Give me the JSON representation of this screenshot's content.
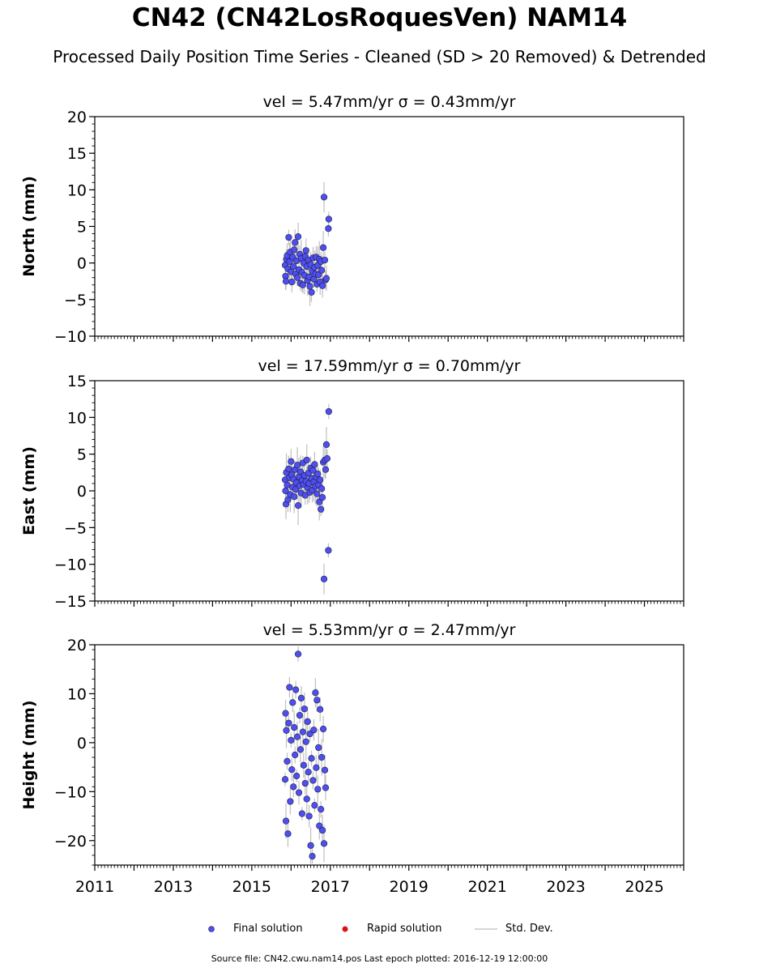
{
  "figure": {
    "title": "CN42 (CN42LosRoquesVen) NAM14",
    "subtitle": "Processed Daily Position Time Series - Cleaned (SD > 20 Removed) & Detrended",
    "source_note": "Source file: CN42.cwu.nam14.pos  Last epoch plotted: 2016-12-19 12:00:00"
  },
  "legend": {
    "final": "Final solution",
    "rapid": "Rapid solution",
    "std": "Std. Dev."
  },
  "colors": {
    "final_fill": "#4f4ff0",
    "final_edge": "#1a1a40",
    "rapid": "#e01010",
    "std": "#b4b4b4"
  },
  "chart_data": [
    {
      "type": "scatter",
      "title": "vel = 5.47mm/yr   σ = 0.43mm/yr",
      "ylabel": "North (mm)",
      "xlim": [
        2011,
        2026
      ],
      "ylim": [
        -10,
        20
      ],
      "yticks": [
        -10,
        -5,
        0,
        5,
        10,
        15,
        20
      ],
      "ytick_labels": [
        "−10",
        "−5",
        "0",
        "5",
        "10",
        "15",
        "20"
      ],
      "xticks": [
        2011,
        2013,
        2015,
        2017,
        2019,
        2021,
        2023,
        2025
      ],
      "xtick_labels": [
        "",
        "",
        "",
        "",
        "",
        "",
        "",
        ""
      ],
      "series": [
        {
          "name": "Final solution",
          "points": [
            [
              2015.85,
              -0.3
            ],
            [
              2015.86,
              -1.8
            ],
            [
              2015.87,
              -2.5
            ],
            [
              2015.88,
              0.5
            ],
            [
              2015.9,
              1.0
            ],
            [
              2015.92,
              -0.8
            ],
            [
              2015.94,
              3.5
            ],
            [
              2015.96,
              0.2
            ],
            [
              2015.98,
              1.5
            ],
            [
              2016.0,
              -1.2
            ],
            [
              2016.02,
              -2.6
            ],
            [
              2016.04,
              0.8
            ],
            [
              2016.06,
              -0.5
            ],
            [
              2016.08,
              1.8
            ],
            [
              2016.1,
              2.8
            ],
            [
              2016.12,
              -1.5
            ],
            [
              2016.14,
              0.3
            ],
            [
              2016.16,
              -2.0
            ],
            [
              2016.18,
              3.6
            ],
            [
              2016.2,
              -0.9
            ],
            [
              2016.22,
              1.2
            ],
            [
              2016.24,
              -2.8
            ],
            [
              2016.26,
              0.6
            ],
            [
              2016.28,
              -1.3
            ],
            [
              2016.3,
              -3.0
            ],
            [
              2016.32,
              0.0
            ],
            [
              2016.34,
              -1.7
            ],
            [
              2016.36,
              0.9
            ],
            [
              2016.38,
              1.7
            ],
            [
              2016.4,
              -0.5
            ],
            [
              2016.42,
              -2.4
            ],
            [
              2016.44,
              0.4
            ],
            [
              2016.46,
              -1.9
            ],
            [
              2016.48,
              -3.2
            ],
            [
              2016.5,
              -0.2
            ],
            [
              2016.52,
              -4.0
            ],
            [
              2016.54,
              -1.1
            ],
            [
              2016.56,
              0.7
            ],
            [
              2016.58,
              -2.2
            ],
            [
              2016.6,
              -0.6
            ],
            [
              2016.62,
              -1.5
            ],
            [
              2016.64,
              0.8
            ],
            [
              2016.66,
              -2.9
            ],
            [
              2016.68,
              -0.3
            ],
            [
              2016.7,
              -1.6
            ],
            [
              2016.72,
              0.5
            ],
            [
              2016.74,
              -2.6
            ],
            [
              2016.76,
              0.2
            ],
            [
              2016.78,
              -1.0
            ],
            [
              2016.8,
              -3.1
            ],
            [
              2016.82,
              2.1
            ],
            [
              2016.84,
              9.0
            ],
            [
              2016.86,
              0.4
            ],
            [
              2016.88,
              -2.3
            ],
            [
              2016.9,
              -2.1
            ],
            [
              2016.95,
              4.7
            ],
            [
              2016.96,
              6.0
            ]
          ]
        }
      ]
    },
    {
      "type": "scatter",
      "title": "vel = 17.59mm/yr   σ = 0.70mm/yr",
      "ylabel": "East (mm)",
      "xlim": [
        2011,
        2026
      ],
      "ylim": [
        -15,
        15
      ],
      "yticks": [
        -15,
        -10,
        -5,
        0,
        5,
        10,
        15
      ],
      "ytick_labels": [
        "−15",
        "−10",
        "−5",
        "0",
        "5",
        "10",
        "15"
      ],
      "xticks": [
        2011,
        2013,
        2015,
        2017,
        2019,
        2021,
        2023,
        2025
      ],
      "xtick_labels": [
        "",
        "",
        "",
        "",
        "",
        "",
        "",
        ""
      ],
      "series": [
        {
          "name": "Final solution",
          "points": [
            [
              2015.85,
              1.5
            ],
            [
              2015.86,
              0.0
            ],
            [
              2015.87,
              -1.8
            ],
            [
              2015.88,
              2.5
            ],
            [
              2015.9,
              0.8
            ],
            [
              2015.92,
              -1.2
            ],
            [
              2015.94,
              3.0
            ],
            [
              2015.96,
              1.8
            ],
            [
              2015.98,
              -0.5
            ],
            [
              2016.0,
              4.0
            ],
            [
              2016.02,
              2.2
            ],
            [
              2016.04,
              0.5
            ],
            [
              2016.06,
              1.6
            ],
            [
              2016.08,
              -0.8
            ],
            [
              2016.1,
              2.9
            ],
            [
              2016.12,
              0.2
            ],
            [
              2016.14,
              1.1
            ],
            [
              2016.16,
              3.5
            ],
            [
              2016.18,
              -2.0
            ],
            [
              2016.2,
              1.9
            ],
            [
              2016.22,
              0.7
            ],
            [
              2016.24,
              2.6
            ],
            [
              2016.26,
              -0.3
            ],
            [
              2016.28,
              1.4
            ],
            [
              2016.3,
              3.8
            ],
            [
              2016.32,
              0.9
            ],
            [
              2016.34,
              2.1
            ],
            [
              2016.36,
              -0.6
            ],
            [
              2016.38,
              1.3
            ],
            [
              2016.4,
              4.2
            ],
            [
              2016.42,
              0.4
            ],
            [
              2016.44,
              2.4
            ],
            [
              2016.46,
              1.0
            ],
            [
              2016.48,
              -0.2
            ],
            [
              2016.5,
              3.1
            ],
            [
              2016.52,
              1.7
            ],
            [
              2016.54,
              0.1
            ],
            [
              2016.56,
              2.8
            ],
            [
              2016.58,
              1.2
            ],
            [
              2016.6,
              3.6
            ],
            [
              2016.62,
              0.6
            ],
            [
              2016.64,
              1.9
            ],
            [
              2016.66,
              -0.4
            ],
            [
              2016.68,
              2.3
            ],
            [
              2016.7,
              0.8
            ],
            [
              2016.72,
              -1.5
            ],
            [
              2016.74,
              1.5
            ],
            [
              2016.76,
              -2.5
            ],
            [
              2016.78,
              0.3
            ],
            [
              2016.8,
              -0.9
            ],
            [
              2016.82,
              3.9
            ],
            [
              2016.84,
              -12.0
            ],
            [
              2016.86,
              4.2
            ],
            [
              2016.88,
              2.9
            ],
            [
              2016.9,
              6.3
            ],
            [
              2016.92,
              4.4
            ],
            [
              2016.95,
              -8.1
            ],
            [
              2016.96,
              10.8
            ]
          ]
        }
      ]
    },
    {
      "type": "scatter",
      "title": "vel = 5.53mm/yr   σ = 2.47mm/yr",
      "ylabel": "Height (mm)",
      "xlim": [
        2011,
        2026
      ],
      "ylim": [
        -25,
        20
      ],
      "yticks": [
        -20,
        -10,
        0,
        10,
        20
      ],
      "ytick_labels": [
        "−20",
        "−10",
        "0",
        "10",
        "20"
      ],
      "xticks": [
        2011,
        2013,
        2015,
        2017,
        2019,
        2021,
        2023,
        2025
      ],
      "xtick_labels": [
        "2011",
        "2013",
        "2015",
        "2017",
        "2019",
        "2021",
        "2023",
        "2025"
      ],
      "series": [
        {
          "name": "Final solution",
          "points": [
            [
              2015.85,
              -7.5
            ],
            [
              2015.86,
              6.0
            ],
            [
              2015.87,
              -16.0
            ],
            [
              2015.88,
              2.5
            ],
            [
              2015.9,
              -3.8
            ],
            [
              2015.92,
              -18.6
            ],
            [
              2015.94,
              4.0
            ],
            [
              2015.96,
              11.3
            ],
            [
              2015.98,
              -12.0
            ],
            [
              2016.0,
              0.5
            ],
            [
              2016.02,
              -5.5
            ],
            [
              2016.04,
              8.2
            ],
            [
              2016.06,
              -9.0
            ],
            [
              2016.08,
              3.1
            ],
            [
              2016.1,
              -2.5
            ],
            [
              2016.12,
              10.8
            ],
            [
              2016.14,
              -6.8
            ],
            [
              2016.16,
              1.2
            ],
            [
              2016.18,
              18.1
            ],
            [
              2016.2,
              -10.2
            ],
            [
              2016.22,
              5.6
            ],
            [
              2016.24,
              -1.4
            ],
            [
              2016.26,
              9.1
            ],
            [
              2016.28,
              -14.5
            ],
            [
              2016.3,
              2.2
            ],
            [
              2016.32,
              -4.6
            ],
            [
              2016.34,
              6.9
            ],
            [
              2016.36,
              -8.3
            ],
            [
              2016.38,
              0.2
            ],
            [
              2016.4,
              -11.5
            ],
            [
              2016.42,
              4.3
            ],
            [
              2016.44,
              -6.0
            ],
            [
              2016.46,
              -15.0
            ],
            [
              2016.48,
              1.8
            ],
            [
              2016.5,
              -21.0
            ],
            [
              2016.52,
              -3.2
            ],
            [
              2016.54,
              -23.2
            ],
            [
              2016.56,
              -7.7
            ],
            [
              2016.58,
              2.6
            ],
            [
              2016.6,
              -12.8
            ],
            [
              2016.62,
              10.2
            ],
            [
              2016.64,
              -5.1
            ],
            [
              2016.66,
              8.7
            ],
            [
              2016.68,
              -9.5
            ],
            [
              2016.7,
              -1.0
            ],
            [
              2016.72,
              -17.0
            ],
            [
              2016.74,
              6.8
            ],
            [
              2016.76,
              -13.6
            ],
            [
              2016.78,
              -3.0
            ],
            [
              2016.8,
              -17.9
            ],
            [
              2016.82,
              2.8
            ],
            [
              2016.84,
              -20.6
            ],
            [
              2016.86,
              -5.6
            ],
            [
              2016.88,
              -9.2
            ]
          ]
        }
      ]
    }
  ]
}
